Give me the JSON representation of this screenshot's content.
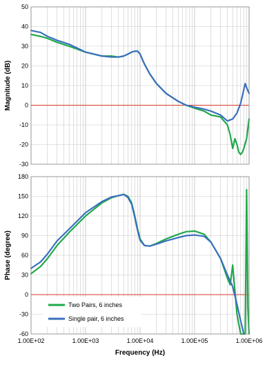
{
  "chart_data": [
    {
      "type": "line",
      "ylabel": "Magnitude (dB)",
      "xlabel": "",
      "x_scale": "log",
      "xlim": [
        100,
        1000000
      ],
      "ylim": [
        -30,
        50
      ],
      "yticks": [
        "50",
        "40",
        "30",
        "20",
        "10",
        "0",
        "-10",
        "-20",
        "-30"
      ],
      "grid": true,
      "reference_line": {
        "y": 0,
        "color": "#d43a2a"
      },
      "series": [
        {
          "name": "Two Pairs, 6 inches",
          "color": "#1fa84a",
          "x": [
            100,
            150,
            200,
            300,
            500,
            1000,
            2000,
            3000,
            4000,
            5000,
            6000,
            7000,
            8000,
            9000,
            10000,
            12000,
            15000,
            20000,
            30000,
            50000,
            70000,
            100000,
            150000,
            200000,
            300000,
            400000,
            450000,
            500000,
            550000,
            600000,
            650000,
            700000,
            750000,
            800000,
            900000,
            1000000
          ],
          "y": [
            36,
            35,
            34,
            32,
            30,
            27,
            25,
            25,
            24.5,
            25,
            26,
            27,
            27.5,
            27.5,
            26,
            21,
            16,
            11,
            6,
            2,
            0,
            -1.5,
            -3,
            -5,
            -6,
            -10,
            -15,
            -22,
            -17,
            -20,
            -24,
            -25,
            -24,
            -22,
            -17,
            -7
          ]
        },
        {
          "name": "Single pair, 6 inches",
          "color": "#3a6fbf",
          "x": [
            100,
            150,
            200,
            300,
            500,
            1000,
            2000,
            3000,
            4000,
            5000,
            6000,
            7000,
            8000,
            9000,
            10000,
            12000,
            15000,
            20000,
            30000,
            50000,
            70000,
            100000,
            150000,
            200000,
            300000,
            400000,
            500000,
            600000,
            700000,
            800000,
            850000,
            900000,
            1000000
          ],
          "y": [
            38,
            37,
            35,
            33,
            31,
            27,
            25,
            24.5,
            24.5,
            25,
            26,
            27,
            27.5,
            27.5,
            26,
            21,
            16,
            11,
            6,
            2,
            0,
            -1,
            -2,
            -3,
            -5,
            -8,
            -7,
            -4,
            1,
            8,
            11,
            9,
            6
          ]
        }
      ]
    },
    {
      "type": "line",
      "ylabel": "Phase (degree)",
      "xlabel": "Frequency (Hz)",
      "x_scale": "log",
      "xlim": [
        100,
        1000000
      ],
      "ylim": [
        -60,
        180
      ],
      "yticks": [
        "180",
        "150",
        "120",
        "90",
        "60",
        "30",
        "0",
        "-30",
        "-60"
      ],
      "xticks": [
        "1.00E+02",
        "1.00E+03",
        "1.00E+04",
        "1.00E+05",
        "1.00E+06"
      ],
      "grid": true,
      "legend_position": "bottom-left",
      "reference_line": {
        "y": 0,
        "color": "#d43a2a"
      },
      "series": [
        {
          "name": "Two Pairs, 6 inches",
          "color": "#1fa84a",
          "x": [
            100,
            150,
            200,
            300,
            500,
            1000,
            2000,
            3000,
            4000,
            5000,
            6000,
            7000,
            8000,
            9000,
            10000,
            12000,
            15000,
            20000,
            30000,
            50000,
            70000,
            100000,
            150000,
            200000,
            300000,
            400000,
            450000,
            500000,
            550000,
            600000,
            700000,
            800000,
            850000,
            900000,
            950000,
            1000000
          ],
          "y": [
            32,
            43,
            55,
            75,
            95,
            120,
            140,
            148,
            151,
            153,
            150,
            140,
            120,
            100,
            85,
            75,
            74,
            78,
            85,
            92,
            96,
            97,
            92,
            80,
            55,
            25,
            15,
            45,
            5,
            -30,
            -60,
            -80,
            -60,
            160,
            -20,
            -60
          ]
        },
        {
          "name": "Single pair, 6 inches",
          "color": "#3a6fbf",
          "x": [
            100,
            150,
            200,
            300,
            500,
            1000,
            2000,
            3000,
            4000,
            5000,
            6000,
            7000,
            8000,
            9000,
            10000,
            12000,
            15000,
            20000,
            30000,
            50000,
            70000,
            100000,
            150000,
            200000,
            300000,
            400000,
            500000,
            600000,
            700000,
            800000
          ],
          "y": [
            40,
            50,
            62,
            82,
            100,
            125,
            142,
            149,
            151,
            153,
            148,
            138,
            118,
            98,
            83,
            75,
            74,
            77,
            82,
            87,
            90,
            91,
            89,
            80,
            55,
            30,
            12,
            -15,
            -40,
            -60
          ]
        }
      ]
    }
  ]
}
